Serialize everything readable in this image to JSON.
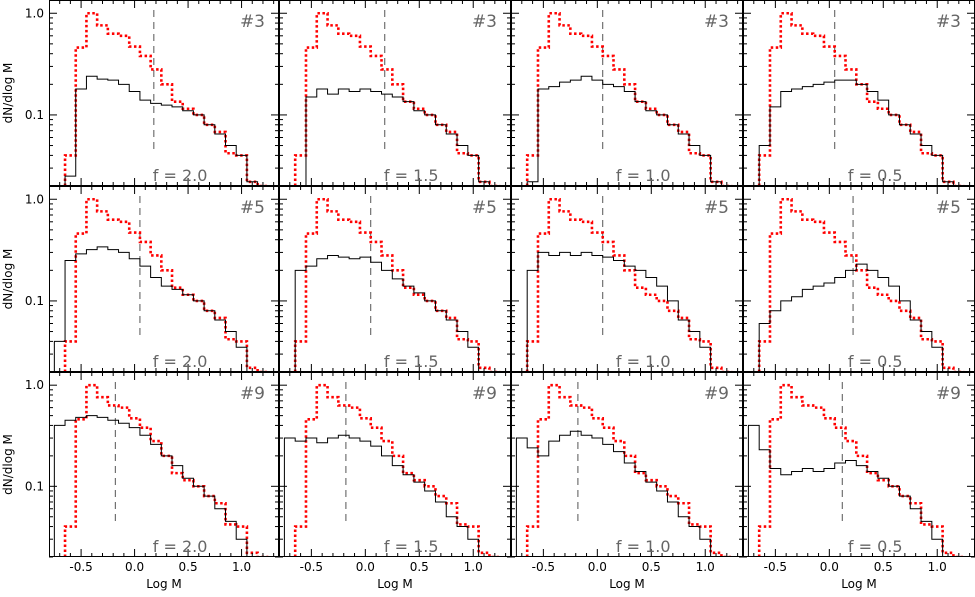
{
  "chart_data": {
    "type": "line",
    "layout": "3x4 grid of histogram panels",
    "xlabel": "Log M",
    "ylabel": "dN/dlog M",
    "yscale": "log",
    "xlim": [
      -0.8,
      1.35
    ],
    "ylim": [
      0.02,
      1.35
    ],
    "x_ticks": [
      -0.5,
      0.0,
      0.5,
      1.0
    ],
    "x_tick_labels": [
      "-0.5",
      "0.0",
      "0.5",
      "1.0"
    ],
    "y_ticks": [
      0.1,
      1.0
    ],
    "y_tick_labels": [
      "0.1",
      "1.0"
    ],
    "grid": false,
    "series_styles": {
      "reference": {
        "color": "#ff0000",
        "dash": "dotted"
      },
      "model": {
        "color": "#000000",
        "dash": "solid"
      },
      "marker": {
        "color": "#555555",
        "dash": "dashed"
      }
    },
    "bin_edges": [
      -0.75,
      -0.65,
      -0.55,
      -0.45,
      -0.35,
      -0.25,
      -0.15,
      -0.05,
      0.05,
      0.15,
      0.25,
      0.35,
      0.45,
      0.55,
      0.65,
      0.75,
      0.85,
      0.95,
      1.05,
      1.15,
      1.25
    ],
    "reference_values": [
      0.0,
      0.04,
      0.46,
      1.0,
      0.76,
      0.63,
      0.6,
      0.47,
      0.38,
      0.28,
      0.2,
      0.135,
      0.115,
      0.1,
      0.08,
      0.068,
      0.042,
      0.04,
      0.022,
      0.02
    ],
    "rows": [
      {
        "panel_label": "#3",
        "panels": [
          {
            "f_label": "f = 2.0",
            "dashed_x": 0.18,
            "values": [
              0.0,
              0.025,
              0.18,
              0.24,
              0.225,
              0.22,
              0.2,
              0.17,
              0.14,
              0.13,
              0.125,
              0.12,
              0.11,
              0.1,
              0.08,
              0.065,
              0.05,
              0.04,
              0.022,
              0.0
            ]
          },
          {
            "f_label": "f = 1.5",
            "dashed_x": 0.18,
            "values": [
              0.0,
              0.02,
              0.15,
              0.18,
              0.16,
              0.18,
              0.17,
              0.18,
              0.17,
              0.16,
              0.15,
              0.135,
              0.11,
              0.1,
              0.08,
              0.065,
              0.05,
              0.04,
              0.022,
              0.0
            ]
          },
          {
            "f_label": "f = 1.0",
            "dashed_x": 0.05,
            "values": [
              0.0,
              0.022,
              0.18,
              0.19,
              0.21,
              0.22,
              0.24,
              0.22,
              0.2,
              0.19,
              0.17,
              0.135,
              0.11,
              0.1,
              0.08,
              0.065,
              0.05,
              0.04,
              0.022,
              0.0
            ]
          },
          {
            "f_label": "f = 0.5",
            "dashed_x": 0.05,
            "values": [
              0.0,
              0.05,
              0.12,
              0.17,
              0.18,
              0.19,
              0.2,
              0.21,
              0.22,
              0.22,
              0.2,
              0.17,
              0.14,
              0.1,
              0.08,
              0.065,
              0.05,
              0.04,
              0.022,
              0.0
            ]
          }
        ]
      },
      {
        "panel_label": "#5",
        "panels": [
          {
            "f_label": "f = 2.0",
            "dashed_x": 0.05,
            "values": [
              0.04,
              0.25,
              0.29,
              0.32,
              0.34,
              0.32,
              0.3,
              0.26,
              0.22,
              0.17,
              0.14,
              0.13,
              0.115,
              0.1,
              0.08,
              0.065,
              0.05,
              0.035,
              0.0,
              0.0
            ]
          },
          {
            "f_label": "f = 1.5",
            "dashed_x": 0.05,
            "values": [
              0.0,
              0.2,
              0.22,
              0.26,
              0.28,
              0.27,
              0.26,
              0.27,
              0.24,
              0.2,
              0.165,
              0.14,
              0.12,
              0.1,
              0.08,
              0.065,
              0.05,
              0.035,
              0.0,
              0.0
            ]
          },
          {
            "f_label": "f = 1.0",
            "dashed_x": 0.05,
            "values": [
              0.0,
              0.2,
              0.3,
              0.28,
              0.3,
              0.28,
              0.3,
              0.28,
              0.27,
              0.25,
              0.22,
              0.2,
              0.17,
              0.14,
              0.1,
              0.065,
              0.05,
              0.035,
              0.0,
              0.0
            ]
          },
          {
            "f_label": "f = 0.5",
            "dashed_x": 0.22,
            "values": [
              0.0,
              0.06,
              0.08,
              0.1,
              0.11,
              0.13,
              0.14,
              0.15,
              0.17,
              0.2,
              0.23,
              0.2,
              0.17,
              0.14,
              0.1,
              0.065,
              0.05,
              0.035,
              0.0,
              0.0
            ]
          }
        ]
      },
      {
        "panel_label": "#9",
        "panels": [
          {
            "f_label": "f = 2.0",
            "dashed_x": -0.18,
            "values": [
              0.4,
              0.45,
              0.48,
              0.5,
              0.48,
              0.45,
              0.42,
              0.38,
              0.32,
              0.26,
              0.2,
              0.16,
              0.12,
              0.1,
              0.08,
              0.06,
              0.045,
              0.03,
              0.0,
              0.0
            ]
          },
          {
            "f_label": "f = 1.5",
            "dashed_x": -0.18,
            "values": [
              0.3,
              0.28,
              0.3,
              0.27,
              0.3,
              0.32,
              0.3,
              0.28,
              0.25,
              0.2,
              0.16,
              0.13,
              0.11,
              0.09,
              0.07,
              0.05,
              0.04,
              0.03,
              0.0,
              0.0
            ]
          },
          {
            "f_label": "f = 1.0",
            "dashed_x": -0.18,
            "values": [
              0.3,
              0.24,
              0.2,
              0.28,
              0.32,
              0.35,
              0.32,
              0.3,
              0.26,
              0.22,
              0.17,
              0.14,
              0.11,
              0.09,
              0.07,
              0.05,
              0.04,
              0.03,
              0.0,
              0.0
            ]
          },
          {
            "f_label": "f = 0.5",
            "dashed_x": 0.12,
            "values": [
              0.4,
              0.23,
              0.15,
              0.13,
              0.14,
              0.15,
              0.14,
              0.15,
              0.17,
              0.18,
              0.16,
              0.14,
              0.12,
              0.1,
              0.08,
              0.06,
              0.045,
              0.03,
              0.0,
              0.0
            ]
          }
        ]
      }
    ]
  }
}
